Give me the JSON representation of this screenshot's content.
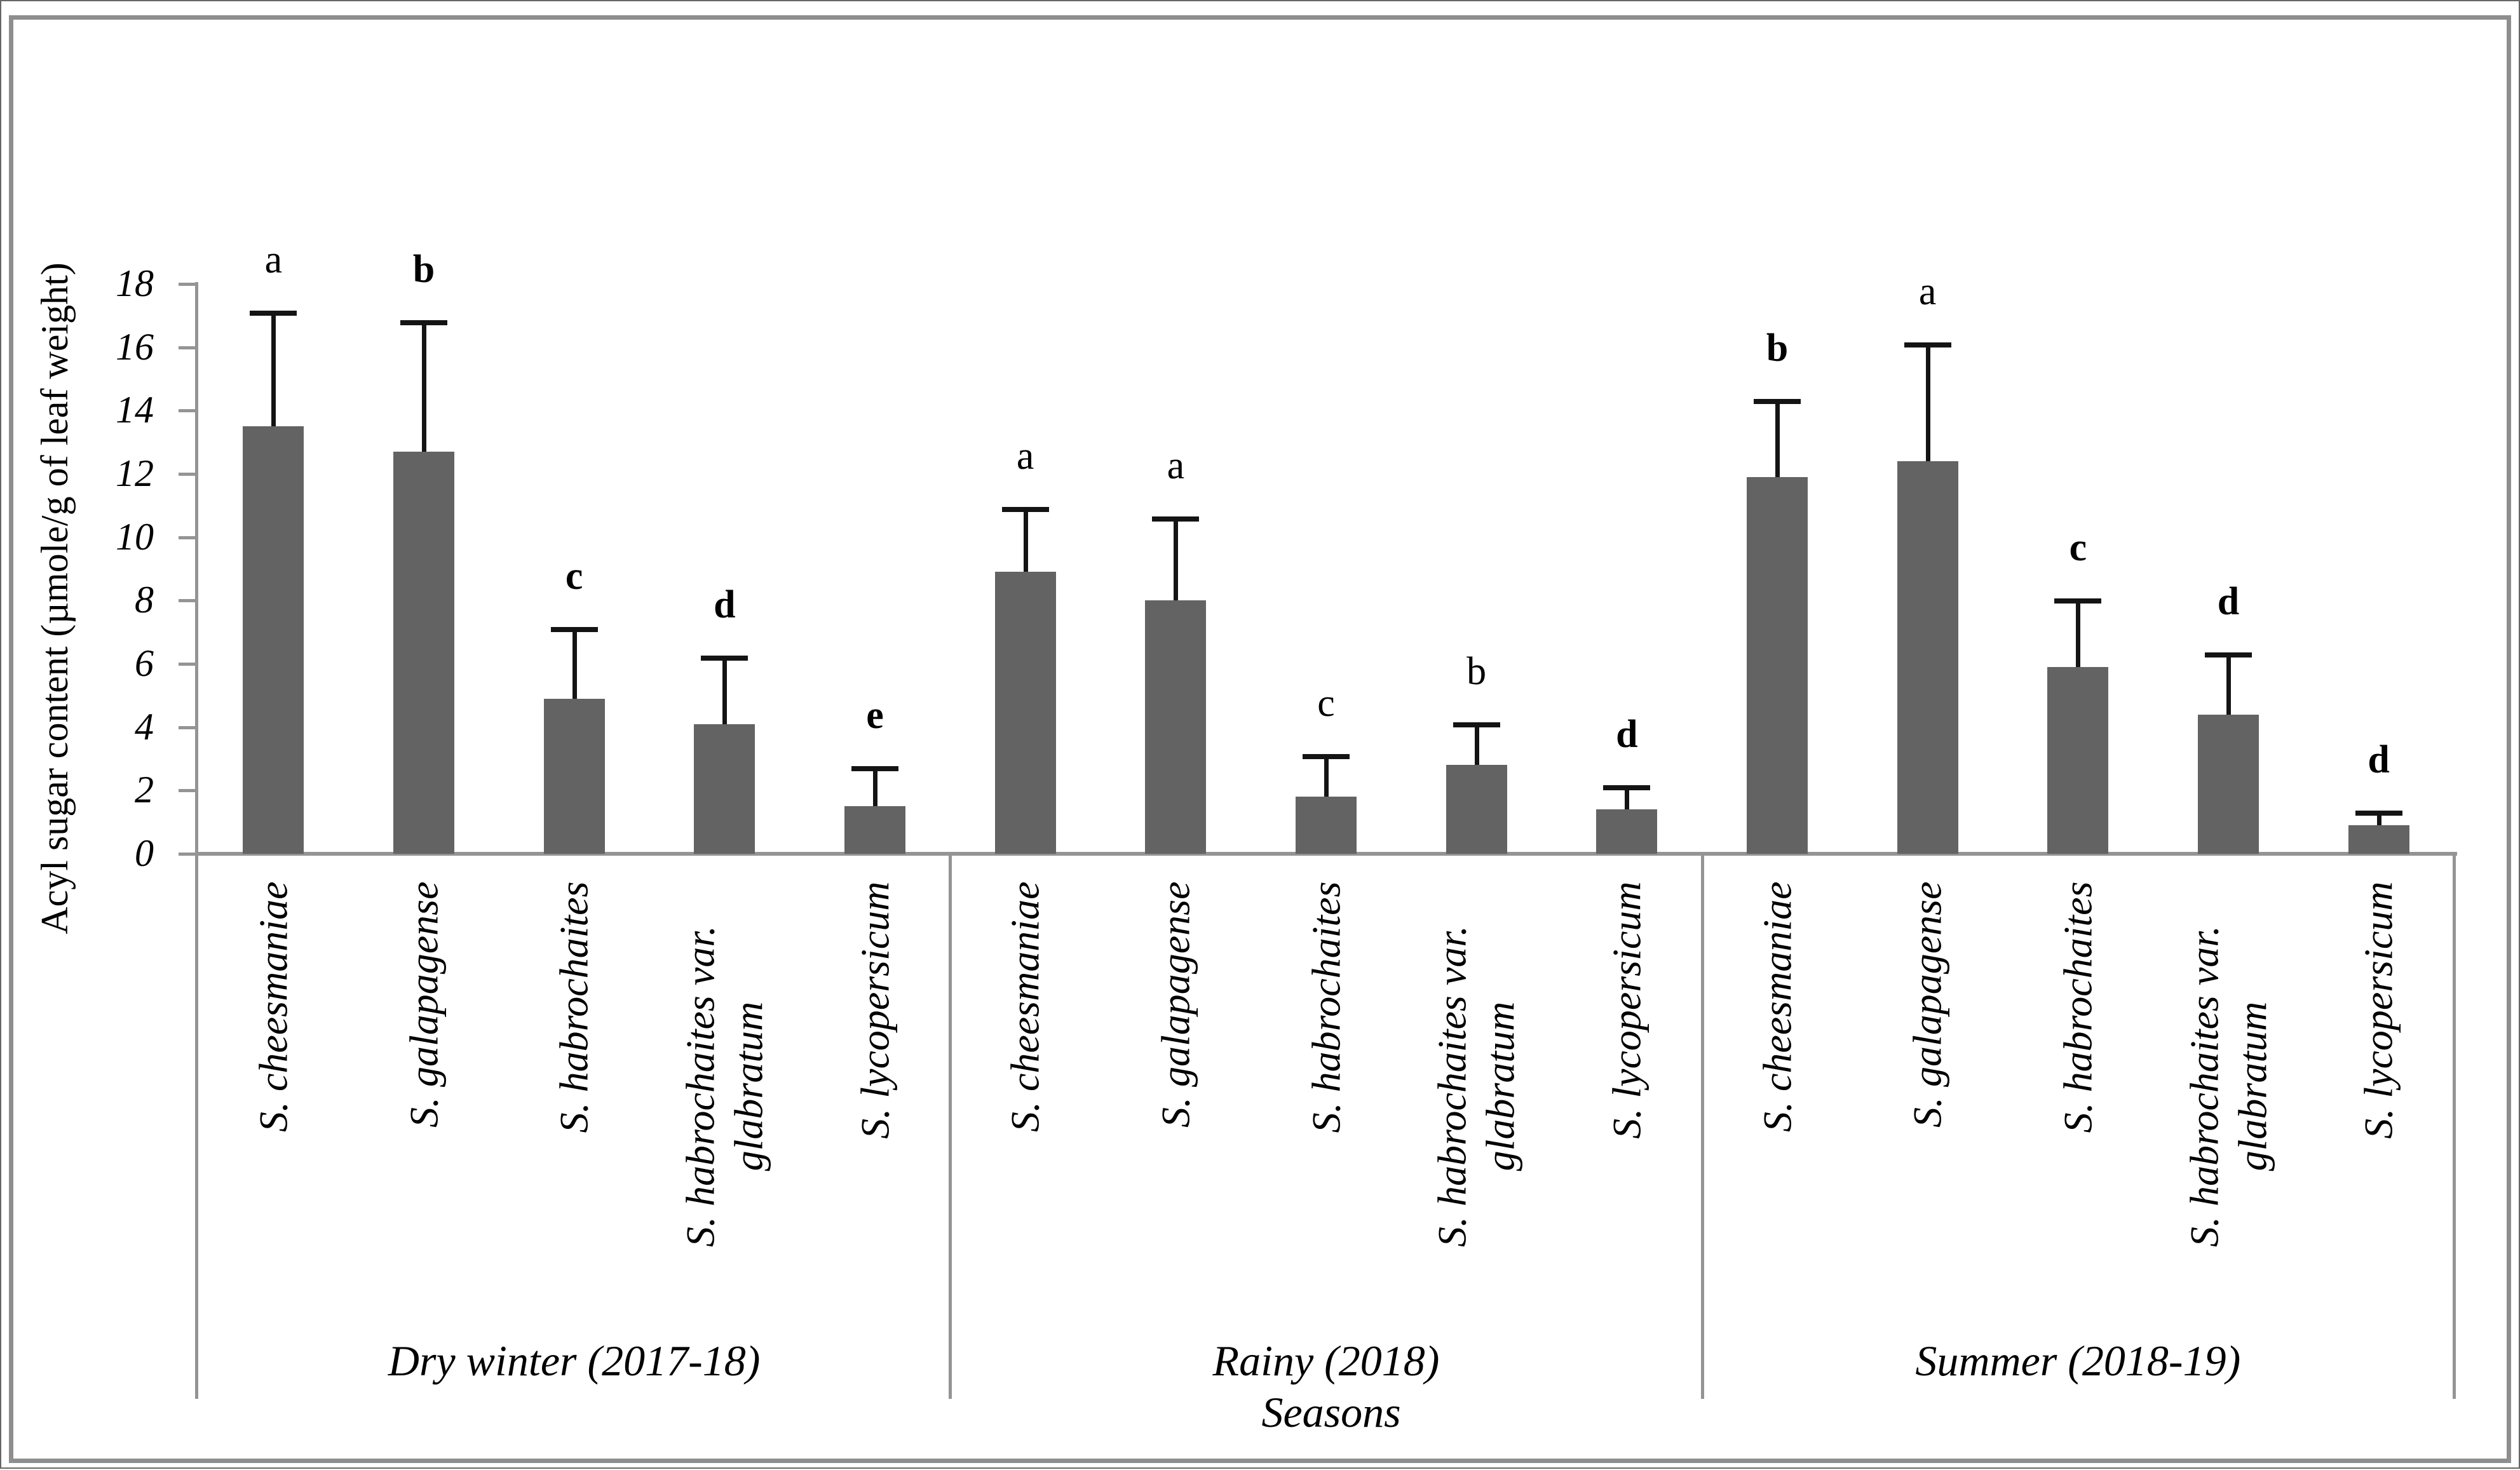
{
  "figure": {
    "background": "#ffffff",
    "border_color": "#8e8e8e",
    "outer_edge_color": "#666666"
  },
  "chart_data": {
    "type": "bar",
    "title": "",
    "ylabel": "Acyl sugar content (µmole/g of leaf weight)",
    "xlabel": "Seasons",
    "ylim": [
      0,
      18
    ],
    "ytick_step": 2,
    "ytick_labels": [
      "0",
      "2",
      "4",
      "6",
      "8",
      "10",
      "12",
      "14",
      "16",
      "18"
    ],
    "grid": false,
    "legend": "none",
    "error_bars": "upper only, black, capped",
    "categories": [
      "S. cheesmaniae",
      "S. galapagense",
      "S. habrochaites",
      "S. habrochaites var. glabratum",
      "S. lycopersicum"
    ],
    "groups": [
      {
        "season": "Dry winter (2017-18)",
        "bars": [
          {
            "species": "S. cheesmaniae",
            "value": 13.5,
            "error": 3.6,
            "letter": "a",
            "letter_bold": false
          },
          {
            "species": "S. galapagense",
            "value": 12.7,
            "error": 4.1,
            "letter": "b",
            "letter_bold": true
          },
          {
            "species": "S. habrochaites",
            "value": 4.9,
            "error": 2.2,
            "letter": "c",
            "letter_bold": true
          },
          {
            "species": "S. habrochaites var. glabratum",
            "value": 4.1,
            "error": 2.1,
            "letter": "d",
            "letter_bold": true
          },
          {
            "species": "S. lycopersicum",
            "value": 1.5,
            "error": 1.2,
            "letter": "e",
            "letter_bold": true
          }
        ]
      },
      {
        "season": "Rainy (2018)",
        "bars": [
          {
            "species": "S. cheesmaniae",
            "value": 8.9,
            "error": 2.0,
            "letter": "a",
            "letter_bold": false
          },
          {
            "species": "S. galapagense",
            "value": 8.0,
            "error": 2.6,
            "letter": "a",
            "letter_bold": false
          },
          {
            "species": "S. habrochaites",
            "value": 1.8,
            "error": 1.3,
            "letter": "c",
            "letter_bold": false
          },
          {
            "species": "S. habrochaites var. glabratum",
            "value": 2.8,
            "error": 1.3,
            "letter": "b",
            "letter_bold": false
          },
          {
            "species": "S. lycopersicum",
            "value": 1.4,
            "error": 0.7,
            "letter": "d",
            "letter_bold": true
          }
        ]
      },
      {
        "season": "Summer (2018-19)",
        "bars": [
          {
            "species": "S. cheesmaniae",
            "value": 11.9,
            "error": 2.4,
            "letter": "b",
            "letter_bold": true
          },
          {
            "species": "S. galapagense",
            "value": 12.4,
            "error": 3.7,
            "letter": "a",
            "letter_bold": false
          },
          {
            "species": "S. habrochaites",
            "value": 5.9,
            "error": 2.1,
            "letter": "c",
            "letter_bold": true
          },
          {
            "species": "S. habrochaites var. glabratum",
            "value": 4.4,
            "error": 1.9,
            "letter": "d",
            "letter_bold": true
          },
          {
            "species": "S. lycopersicum",
            "value": 0.9,
            "error": 0.4,
            "letter": "d",
            "letter_bold": true
          }
        ]
      }
    ],
    "species_label_wrap": {
      "S. habrochaites var. glabratum": [
        "S. habrochaites var.",
        "glabratum"
      ]
    },
    "colors": {
      "bar": "#636363",
      "error_bar": "#141414",
      "axis_line": "#949494",
      "text": "#000000"
    }
  }
}
